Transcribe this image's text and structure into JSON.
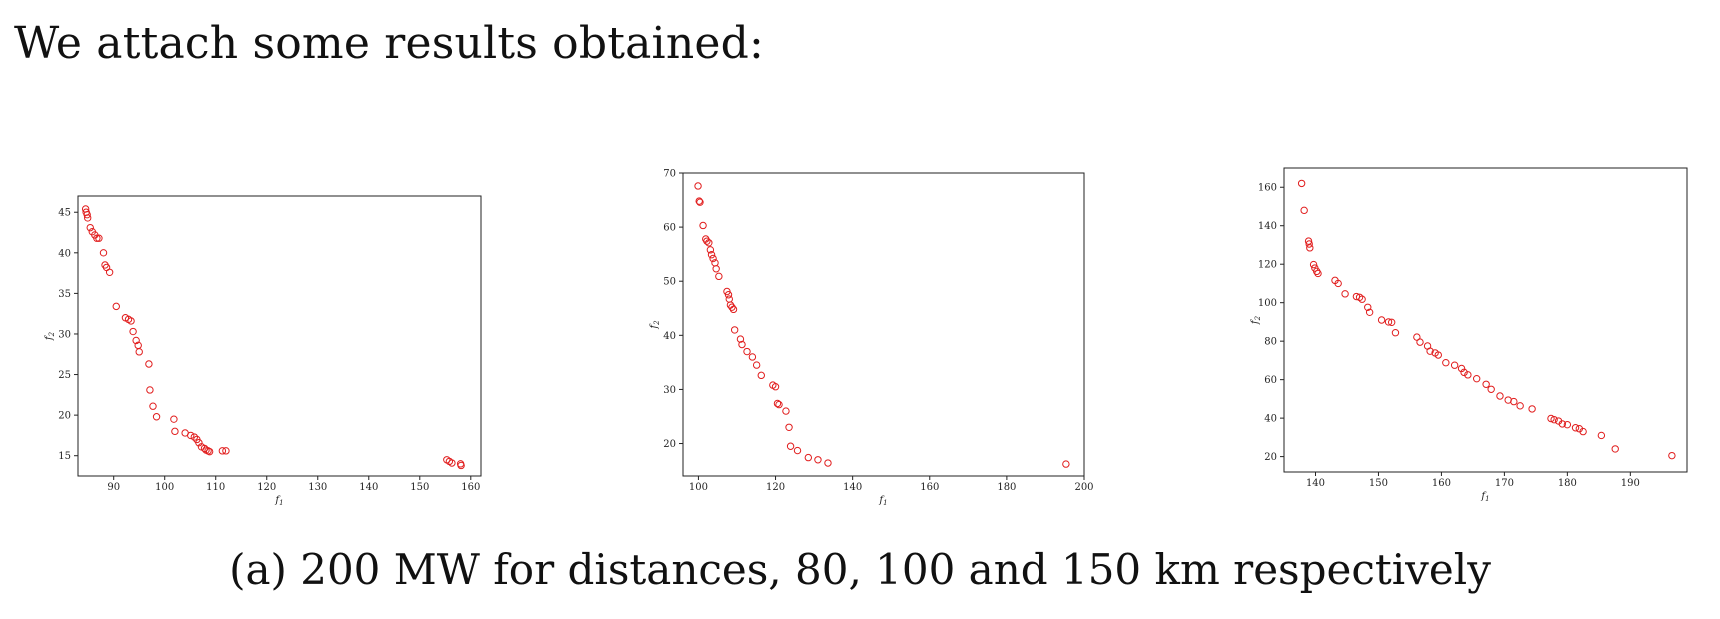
{
  "intro_text": "We attach some results obtained:",
  "caption": "(a) 200 MW for distances, 80, 100 and 150 km respectively",
  "marker_color": "#e11d1d",
  "chart_data": [
    {
      "type": "scatter",
      "title": "",
      "xlabel": "f1",
      "ylabel": "f2",
      "xlim": [
        83,
        162
      ],
      "ylim": [
        12.5,
        47
      ],
      "xticks": [
        90,
        100,
        110,
        120,
        130,
        140,
        150,
        160
      ],
      "yticks": [
        15,
        20,
        25,
        30,
        35,
        40,
        45
      ],
      "grid": false,
      "series": [
        {
          "x": [
            84.5,
            84.6,
            84.8,
            84.9,
            85.4,
            85.8,
            86.3,
            86.7,
            87.1,
            88.0,
            88.3,
            88.6,
            89.2,
            90.5,
            92.3,
            92.9,
            93.4,
            93.8,
            94.4,
            94.8,
            95.0,
            96.9,
            97.1,
            97.7,
            98.4,
            101.8,
            102.0,
            104.0,
            105.1,
            105.8,
            106.3,
            106.7,
            107.2,
            107.8,
            108.1,
            108.5,
            108.8,
            111.3,
            112.0,
            155.3,
            155.8,
            156.3,
            158.0,
            158.1
          ],
          "y": [
            45.4,
            45.0,
            44.7,
            44.3,
            43.1,
            42.6,
            42.2,
            41.8,
            41.8,
            40.0,
            38.5,
            38.2,
            37.6,
            33.4,
            32.0,
            31.8,
            31.6,
            30.3,
            29.2,
            28.6,
            27.8,
            26.3,
            23.1,
            21.1,
            19.8,
            19.5,
            18.0,
            17.8,
            17.5,
            17.3,
            17.0,
            16.6,
            16.1,
            15.9,
            15.7,
            15.6,
            15.5,
            15.6,
            15.6,
            14.5,
            14.3,
            14.1,
            14.0,
            13.8
          ]
        }
      ]
    },
    {
      "type": "scatter",
      "title": "",
      "xlabel": "f1",
      "ylabel": "f2",
      "xlim": [
        96,
        200
      ],
      "ylim": [
        14,
        70
      ],
      "xticks": [
        100,
        120,
        140,
        160,
        180,
        200
      ],
      "yticks": [
        20,
        30,
        40,
        50,
        60,
        70
      ],
      "grid": false,
      "series": [
        {
          "x": [
            99.9,
            100.2,
            100.4,
            101.2,
            101.9,
            102.2,
            102.7,
            103.1,
            103.4,
            103.8,
            104.3,
            104.6,
            105.3,
            107.4,
            107.8,
            108.0,
            108.3,
            108.7,
            109.1,
            109.4,
            110.9,
            111.3,
            112.6,
            114.0,
            115.1,
            116.3,
            119.3,
            120.0,
            120.5,
            120.9,
            122.7,
            123.5,
            123.9,
            125.7,
            128.5,
            131.0,
            133.6,
            195.3
          ],
          "y": [
            67.6,
            64.8,
            64.6,
            60.3,
            57.8,
            57.4,
            57.1,
            55.8,
            54.9,
            54.2,
            53.4,
            52.3,
            50.9,
            48.1,
            47.5,
            46.7,
            45.6,
            45.2,
            44.8,
            41.0,
            39.3,
            38.3,
            37.0,
            36.0,
            34.5,
            32.6,
            30.8,
            30.5,
            27.4,
            27.2,
            26.0,
            23.0,
            19.5,
            18.7,
            17.4,
            17.0,
            16.4,
            16.2
          ]
        }
      ]
    },
    {
      "type": "scatter",
      "title": "",
      "xlabel": "f1",
      "ylabel": "f2",
      "xlim": [
        135,
        199
      ],
      "ylim": [
        12,
        170
      ],
      "xticks": [
        140,
        150,
        160,
        170,
        180,
        190
      ],
      "yticks": [
        20,
        40,
        60,
        80,
        100,
        120,
        140,
        160
      ],
      "grid": false,
      "series": [
        {
          "x": [
            137.8,
            138.2,
            138.9,
            139.0,
            139.1,
            139.7,
            139.9,
            140.2,
            140.4,
            143.1,
            143.6,
            144.7,
            146.5,
            147.0,
            147.4,
            148.3,
            148.6,
            150.5,
            151.6,
            152.1,
            152.7,
            156.1,
            156.6,
            157.8,
            158.2,
            159.0,
            159.5,
            160.7,
            162.1,
            163.2,
            163.6,
            164.2,
            165.6,
            167.1,
            167.9,
            169.3,
            170.6,
            171.5,
            172.5,
            174.4,
            177.4,
            177.9,
            178.6,
            179.2,
            180.0,
            181.3,
            181.9,
            182.5,
            185.4,
            187.6,
            196.6
          ],
          "y": [
            162.0,
            148.0,
            132.0,
            130.5,
            128.5,
            119.8,
            118.0,
            116.3,
            115.2,
            111.6,
            110.0,
            104.6,
            103.2,
            102.8,
            101.8,
            97.6,
            95.0,
            91.0,
            90.0,
            89.8,
            84.4,
            82.1,
            79.5,
            77.5,
            74.8,
            73.9,
            72.8,
            68.8,
            67.5,
            65.8,
            63.8,
            62.5,
            60.5,
            57.6,
            55.0,
            51.5,
            49.4,
            48.6,
            46.4,
            44.8,
            39.8,
            39.2,
            38.5,
            37.0,
            36.6,
            35.0,
            34.5,
            33.0,
            31.0,
            24.0,
            20.5
          ]
        }
      ]
    }
  ]
}
